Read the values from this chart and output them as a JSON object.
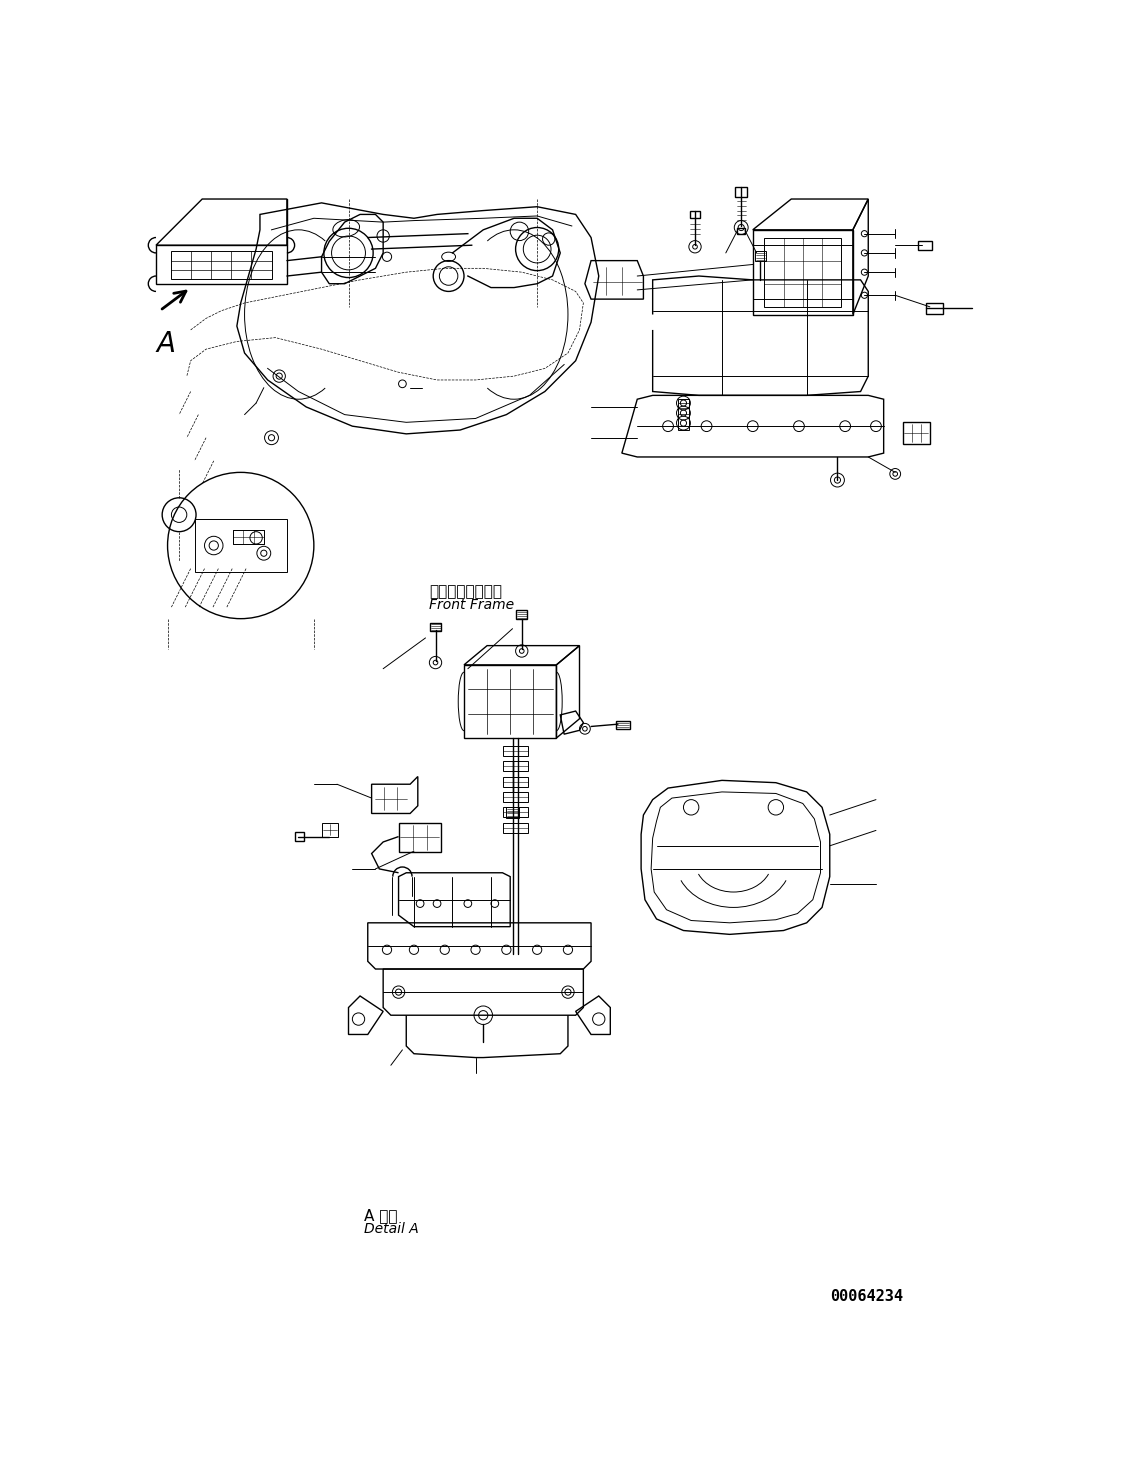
{
  "background_color": "#ffffff",
  "fig_width": 11.33,
  "fig_height": 14.66,
  "dpi": 100,
  "text_front_frame_jp": "フロントフレーム",
  "text_front_frame_en": "Front Frame",
  "text_detail_jp": "A 詳細",
  "text_detail_en": "Detail A",
  "text_code": "00064234"
}
